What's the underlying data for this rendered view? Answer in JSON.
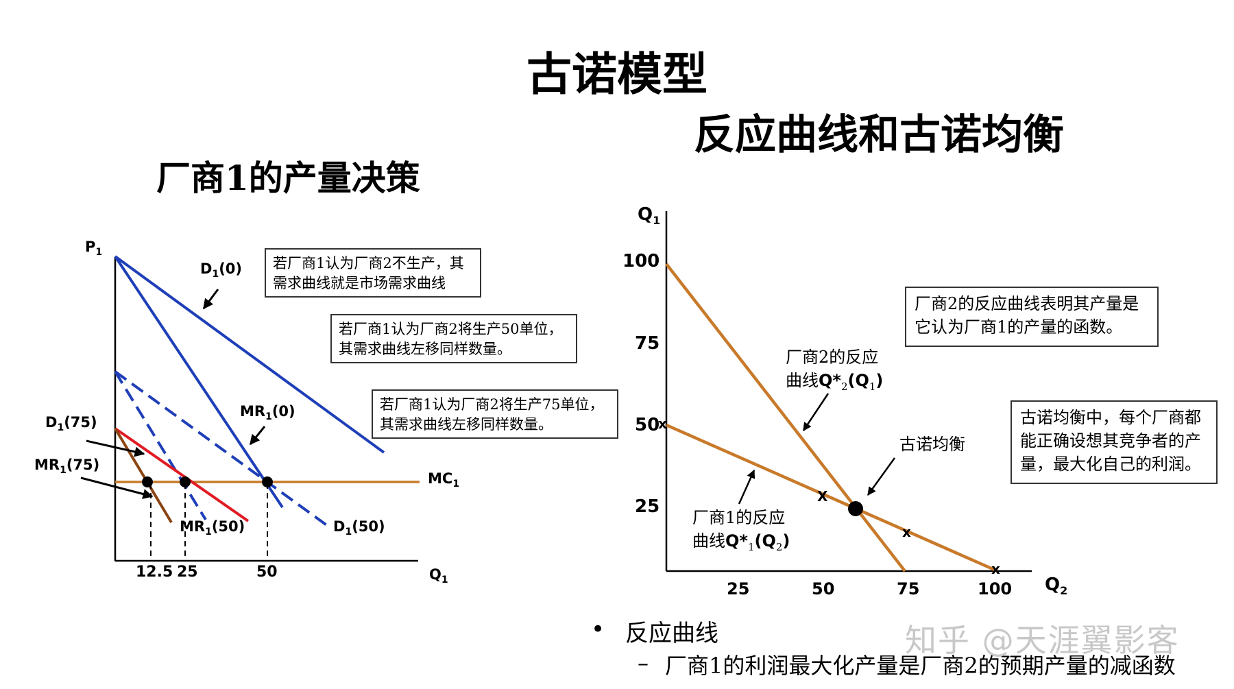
{
  "titles": {
    "main": "古诺模型",
    "right": "反应曲线和古诺均衡",
    "left": "厂商1的产量决策"
  },
  "left_chart": {
    "y_axis": "P",
    "y_axis_sub": "1",
    "x_axis": "Q",
    "x_axis_sub": "1",
    "x_ticks": [
      "12.5",
      "25",
      "50"
    ],
    "labels": {
      "d0": "D",
      "d0_sub": "1",
      "d0_arg": "(0)",
      "mr0": "MR",
      "mr0_sub": "1",
      "mr0_arg": "(0)",
      "d75": "D",
      "d75_sub": "1",
      "d75_arg": "(75)",
      "mr75": "MR",
      "mr75_sub": "1",
      "mr75_arg": "(75)",
      "mr50": "MR",
      "mr50_sub": "1",
      "mr50_arg": "(50)",
      "d50": "D",
      "d50_sub": "1",
      "d50_arg": "(50)",
      "mc": "MC",
      "mc_sub": "1"
    },
    "boxes": {
      "b1_line1": "若厂商1认为厂商2不生产，其",
      "b1_line2": "需求曲线就是市场需求曲线",
      "b2_line1": "若厂商1认为厂商2将生产50单位，",
      "b2_line2": "其需求曲线左移同样数量。",
      "b3_line1": "若厂商1认为厂商2将生产75单位，",
      "b3_line2": "其需求曲线左移同样数量。"
    },
    "colors": {
      "demand": "#1f3fb8",
      "mr75": "#e01b24",
      "d75": "#8b4513",
      "mc": "#c87a2a"
    }
  },
  "right_chart": {
    "y_axis": "Q",
    "y_axis_sub": "1",
    "x_axis": "Q",
    "x_axis_sub": "2",
    "y_ticks": [
      "100",
      "75",
      "50",
      "25"
    ],
    "x_ticks": [
      "25",
      "50",
      "75",
      "100"
    ],
    "labels": {
      "r2_line1": "厂商2的反应",
      "r2_line2_a": "曲线",
      "r2_line2_b": "Q*",
      "r2_line2_sub": "2",
      "r2_line2_c": "(Q",
      "r2_line2_sub2": "1",
      "r2_line2_d": ")",
      "r1_line1": "厂商1的反应",
      "r1_line2_a": "曲线",
      "r1_line2_b": "Q*",
      "r1_line2_sub": "1",
      "r1_line2_c": "(Q",
      "r1_line2_sub2": "2",
      "r1_line2_d": ")",
      "eq": "古诺均衡",
      "x_mark": "x",
      "x_mark_cap": "X"
    },
    "boxes": {
      "b1_line1": "厂商2的反应曲线表明其产量是",
      "b1_line2": "它认为厂商1的产量的函数。",
      "b2_line1": "古诺均衡中，每个厂商都",
      "b2_line2": "能正确设想其竞争者的产",
      "b2_line3": "量，最大化自己的利润。"
    },
    "colors": {
      "reaction": "#c87a2a"
    }
  },
  "bullets": {
    "marker": "•",
    "item1": "反应曲线",
    "dash": "–",
    "item2": "厂商1的利润最大化产量是厂商2的预期产量的减函数"
  },
  "watermark": "知乎 @天涯翼影客"
}
